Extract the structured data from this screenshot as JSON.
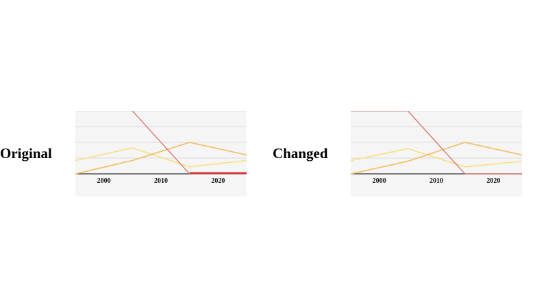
{
  "labels": {
    "left": "Original",
    "right": "Changed"
  },
  "colors": {
    "panel_bg": "#f5f5f5",
    "grid": "#dcdcdc",
    "axis": "#333333",
    "series": [
      "#f7e08a",
      "#f3c06e",
      "#d96b64",
      "#cc2222"
    ]
  },
  "chart_data": [
    {
      "type": "line",
      "name": "original",
      "xlim": [
        1995,
        2025
      ],
      "ylim": [
        0,
        4
      ],
      "xticks": [
        2000,
        2010,
        2020
      ],
      "grid": true,
      "series": [
        {
          "x": [
            1995,
            2005,
            2015,
            2025
          ],
          "values": [
            0.85,
            1.65,
            0.45,
            0.85
          ]
        },
        {
          "x": [
            1995,
            2005,
            2015,
            2025
          ],
          "values": [
            0.0,
            0.85,
            2.0,
            1.2
          ]
        },
        {
          "x": [
            2005,
            2015,
            2025
          ],
          "values": [
            4.0,
            0.0,
            0.0
          ]
        },
        {
          "x": [
            2015,
            2025
          ],
          "values": [
            0.05,
            0.05
          ]
        }
      ]
    },
    {
      "type": "line",
      "name": "changed",
      "xlim": [
        1995,
        2025
      ],
      "ylim": [
        0,
        4
      ],
      "xticks": [
        2000,
        2010,
        2020
      ],
      "grid": true,
      "series": [
        {
          "x": [
            1995,
            2005,
            2015,
            2025
          ],
          "values": [
            0.85,
            1.6,
            0.45,
            0.8
          ]
        },
        {
          "x": [
            1995,
            2005,
            2015,
            2025
          ],
          "values": [
            0.0,
            0.8,
            2.0,
            1.2
          ]
        },
        {
          "x": [
            1995,
            2005,
            2015,
            2025
          ],
          "values": [
            4.0,
            4.0,
            0.0,
            0.0
          ]
        }
      ]
    }
  ]
}
